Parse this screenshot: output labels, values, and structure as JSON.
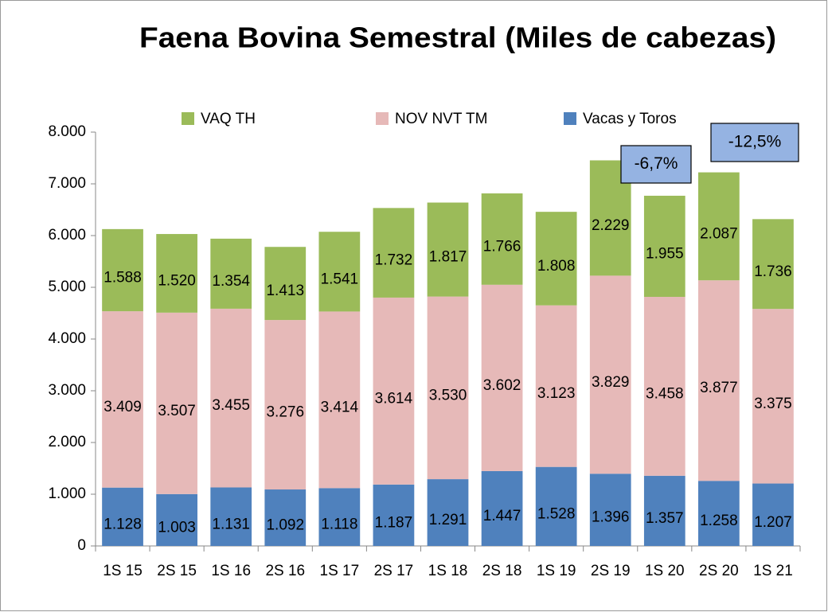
{
  "chart_data": {
    "type": "stacked_bar",
    "title": "Faena Bovina Semestral (Miles de cabezas)",
    "categories": [
      "1S 15",
      "2S 15",
      "1S 16",
      "2S 16",
      "1S 17",
      "2S 17",
      "1S 18",
      "2S 18",
      "1S 19",
      "2S 19",
      "1S 20",
      "2S 20",
      "1S 21"
    ],
    "series": [
      {
        "name": "Vacas y Toros",
        "color": "#4f81bd",
        "values": [
          1128,
          1003,
          1131,
          1092,
          1118,
          1187,
          1291,
          1447,
          1528,
          1396,
          1357,
          1258,
          1207
        ],
        "value_labels": [
          "1.128",
          "1.003",
          "1.131",
          "1.092",
          "1.118",
          "1.187",
          "1.291",
          "1.447",
          "1.528",
          "1.396",
          "1.357",
          "1.258",
          "1.207"
        ]
      },
      {
        "name": "NOV NVT TM",
        "color": "#e6b9b8",
        "values": [
          3409,
          3507,
          3455,
          3276,
          3414,
          3614,
          3530,
          3602,
          3123,
          3829,
          3458,
          3877,
          3375
        ],
        "value_labels": [
          "3.409",
          "3.507",
          "3.455",
          "3.276",
          "3.414",
          "3.614",
          "3.530",
          "3.602",
          "3.123",
          "3.829",
          "3.458",
          "3.877",
          "3.375"
        ]
      },
      {
        "name": "VAQ TH",
        "color": "#9bbb59",
        "values": [
          1588,
          1520,
          1354,
          1413,
          1541,
          1732,
          1817,
          1766,
          1808,
          2229,
          1955,
          2087,
          1736
        ],
        "value_labels": [
          "1.588",
          "1.520",
          "1.354",
          "1.413",
          "1.541",
          "1.732",
          "1.817",
          "1.766",
          "1.808",
          "2.229",
          "1.955",
          "2.087",
          "1.736"
        ]
      }
    ],
    "ylim": [
      0,
      8000
    ],
    "yticks": [
      0,
      {
        "value": 1000,
        "label": "1.000"
      },
      {
        "value": 2000,
        "label": "2.000"
      },
      {
        "value": 3000,
        "label": "3.000"
      },
      {
        "value": 4000,
        "label": "4.000"
      },
      {
        "value": 5000,
        "label": "5.000"
      },
      {
        "value": 6000,
        "label": "6.000"
      },
      {
        "value": 7000,
        "label": "7.000"
      },
      {
        "value": 8000,
        "label": "8.000"
      }
    ],
    "grid": false,
    "legend": "top",
    "annotations": [
      "-6,7%",
      "-12,5%"
    ]
  }
}
